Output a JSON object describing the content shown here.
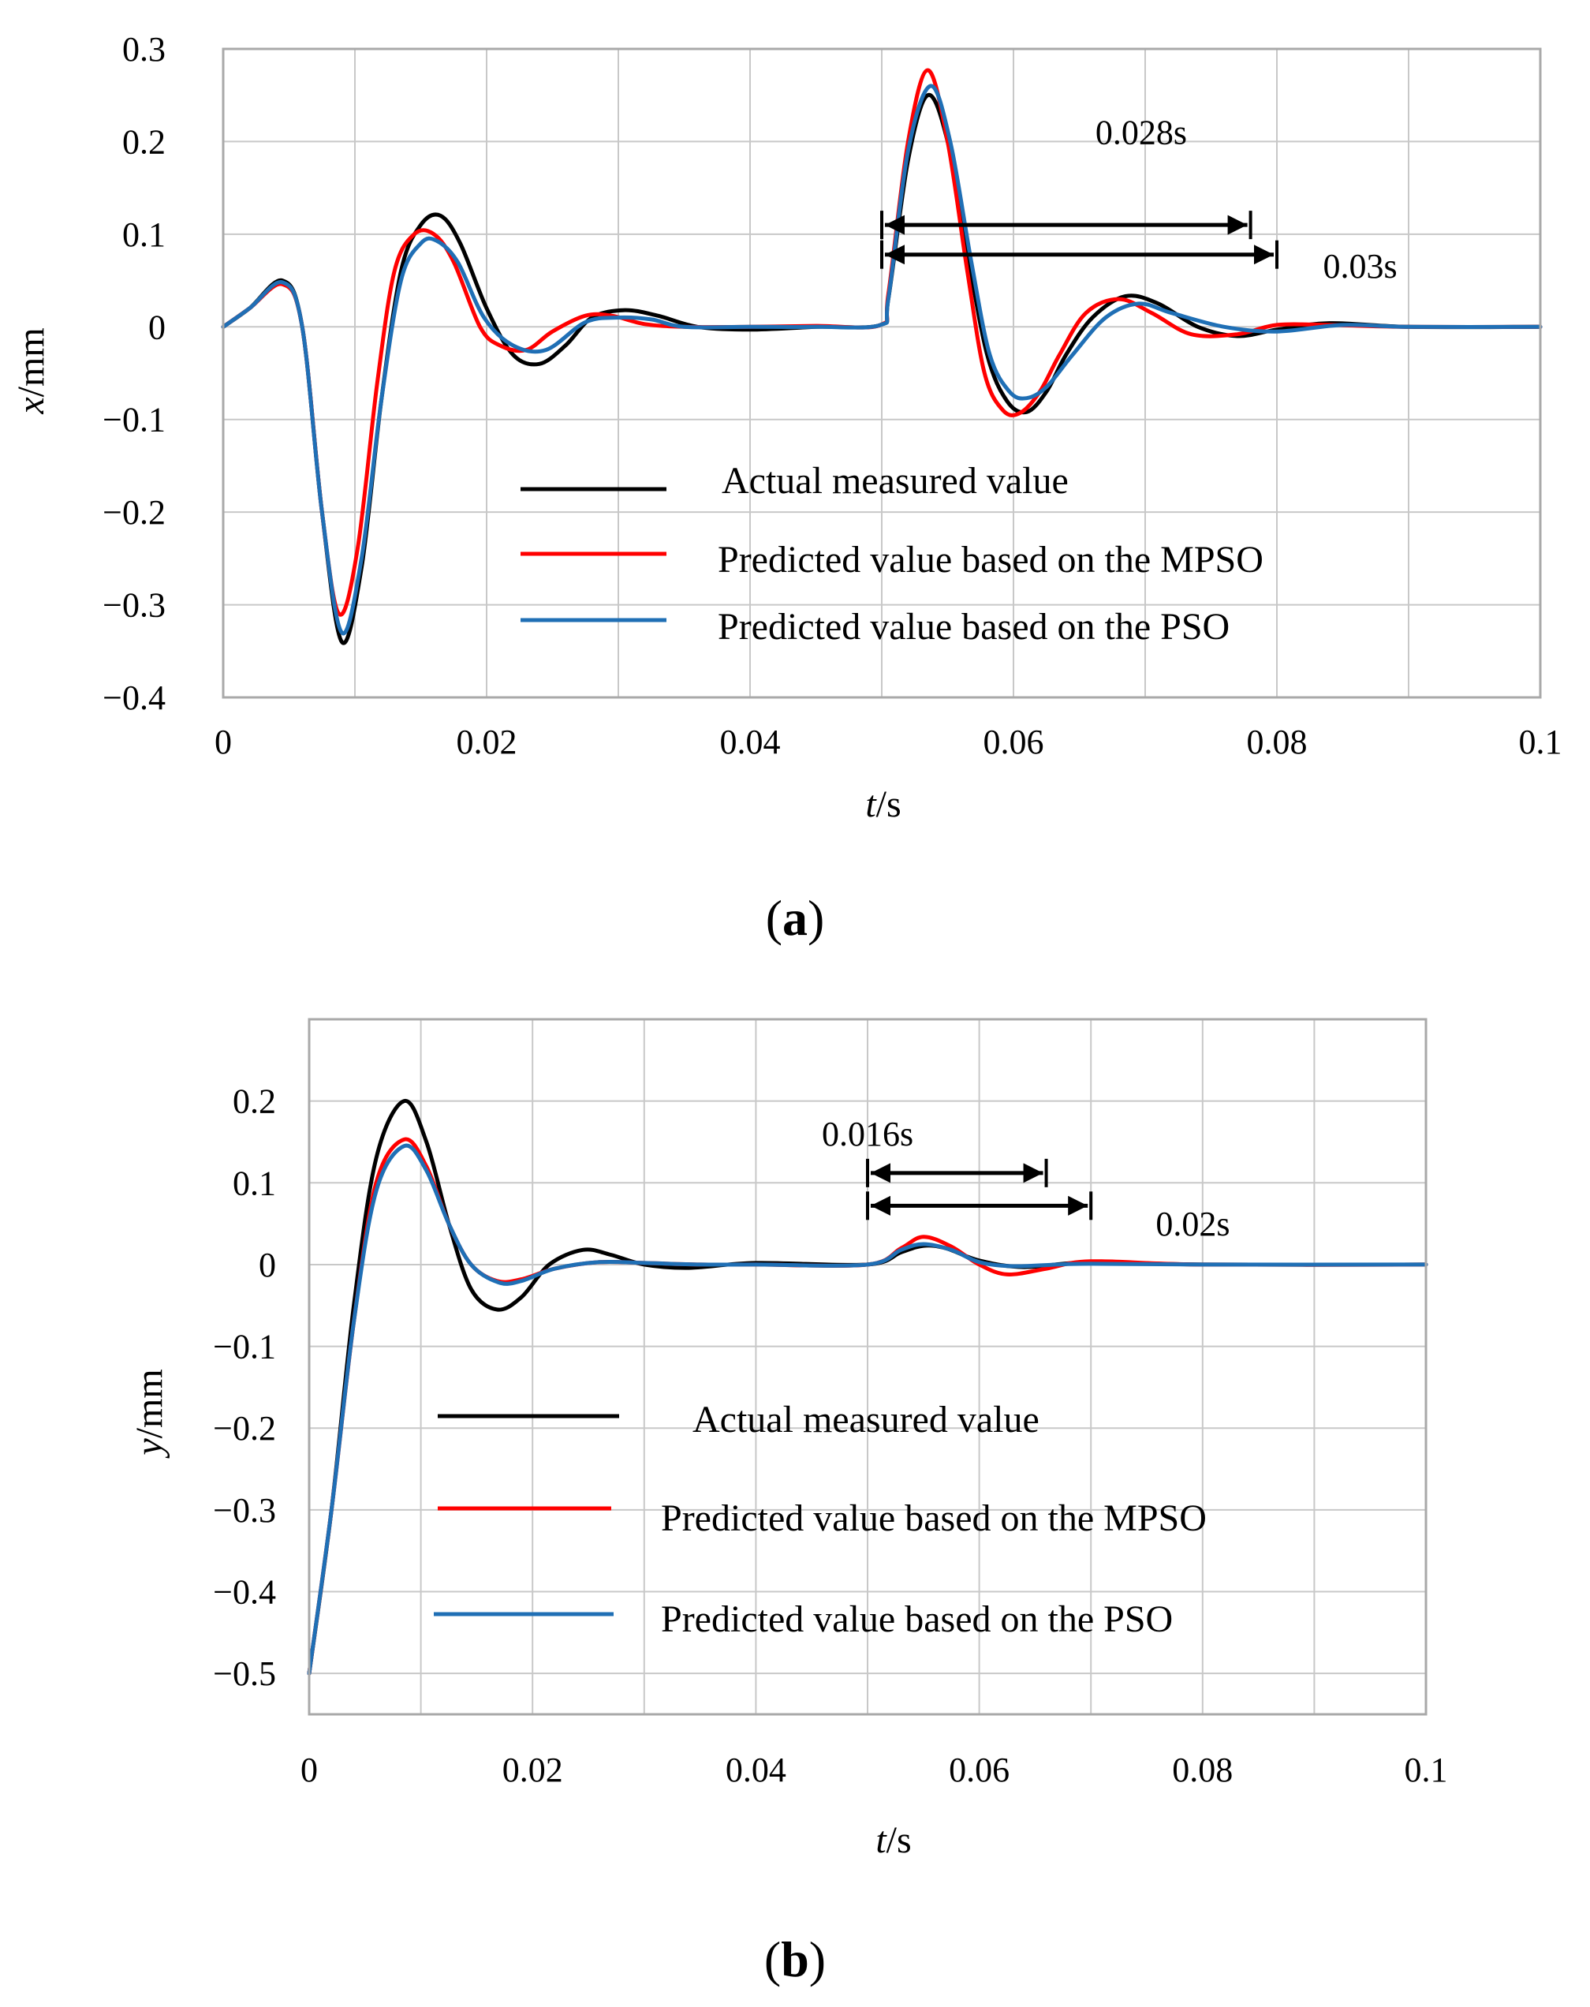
{
  "figure": {
    "panels": [
      {
        "label": "a",
        "xlabel_italic": "t",
        "xlabel_unit": "/s",
        "ylabel_italic": "x",
        "ylabel_unit": "/mm",
        "annotations": [
          {
            "text": "0.028s"
          },
          {
            "text": "0.03s"
          }
        ]
      },
      {
        "label": "b",
        "xlabel_italic": "t",
        "xlabel_unit": "/s",
        "ylabel_italic": "y",
        "ylabel_unit": "/mm",
        "annotations": [
          {
            "text": "0.016s"
          },
          {
            "text": "0.02s"
          }
        ]
      }
    ]
  },
  "chart_data": [
    {
      "type": "line",
      "panel": "a",
      "xlabel": "t/s",
      "ylabel": "x/mm",
      "xlim": [
        0,
        0.1
      ],
      "ylim": [
        -0.4,
        0.3
      ],
      "xticks": [
        0,
        0.02,
        0.04,
        0.06,
        0.08,
        0.1
      ],
      "xtick_labels": [
        "0",
        "0.02",
        "0.04",
        "0.06",
        "0.08",
        "0.1"
      ],
      "yticks": [
        0.3,
        0.2,
        0.1,
        0,
        -0.1,
        -0.2,
        -0.3,
        -0.4
      ],
      "ytick_labels": [
        "0.3",
        "0.2",
        "0.1",
        "0",
        "−0.1",
        "−0.2",
        "−0.3",
        "−0.4"
      ],
      "grid": true,
      "legend_position": "lower-center",
      "intervals": [
        {
          "label": "0.028s",
          "x_start": 0.05,
          "x_end": 0.078,
          "y": 0.11
        },
        {
          "label": "0.03s",
          "x_start": 0.05,
          "x_end": 0.08,
          "y": 0.078
        }
      ],
      "series": [
        {
          "name": "Actual measured value",
          "color": "#000000",
          "x": [
            0,
            0.002,
            0.0045,
            0.006,
            0.0075,
            0.009,
            0.0105,
            0.012,
            0.0135,
            0.015,
            0.0165,
            0.018,
            0.02,
            0.022,
            0.024,
            0.026,
            0.028,
            0.0305,
            0.033,
            0.036,
            0.04,
            0.045,
            0.0499,
            0.0505,
            0.052,
            0.0535,
            0.055,
            0.0565,
            0.058,
            0.0595,
            0.061,
            0.0625,
            0.064,
            0.066,
            0.0685,
            0.071,
            0.074,
            0.077,
            0.08,
            0.084,
            0.09,
            0.1
          ],
          "y": [
            0,
            0.02,
            0.05,
            0.0,
            -0.2,
            -0.34,
            -0.26,
            -0.08,
            0.06,
            0.11,
            0.12,
            0.09,
            0.02,
            -0.03,
            -0.04,
            -0.02,
            0.01,
            0.018,
            0.012,
            0.0,
            -0.003,
            0.0,
            0.002,
            0.03,
            0.18,
            0.25,
            0.2,
            0.08,
            -0.03,
            -0.08,
            -0.092,
            -0.07,
            -0.03,
            0.01,
            0.033,
            0.025,
            0.0,
            -0.01,
            -0.003,
            0.004,
            0.0,
            0.0
          ]
        },
        {
          "name": "Predicted value based on the MPSO",
          "color": "#ff0000",
          "x": [
            0,
            0.002,
            0.0045,
            0.006,
            0.0075,
            0.0088,
            0.0102,
            0.0117,
            0.013,
            0.0145,
            0.016,
            0.0175,
            0.0195,
            0.021,
            0.023,
            0.025,
            0.0275,
            0.0295,
            0.032,
            0.035,
            0.04,
            0.045,
            0.0499,
            0.0505,
            0.052,
            0.0535,
            0.055,
            0.0565,
            0.0578,
            0.0592,
            0.0605,
            0.062,
            0.0635,
            0.0655,
            0.068,
            0.0705,
            0.0735,
            0.077,
            0.08,
            0.084,
            0.09,
            0.1
          ],
          "y": [
            0,
            0.02,
            0.046,
            0.0,
            -0.2,
            -0.31,
            -0.24,
            -0.06,
            0.06,
            0.1,
            0.1,
            0.07,
            0.0,
            -0.02,
            -0.025,
            -0.005,
            0.012,
            0.012,
            0.003,
            0.0,
            0.0,
            0.001,
            0.002,
            0.035,
            0.2,
            0.277,
            0.2,
            0.06,
            -0.05,
            -0.09,
            -0.093,
            -0.07,
            -0.03,
            0.015,
            0.03,
            0.015,
            -0.008,
            -0.008,
            0.002,
            0.002,
            0.0,
            0.0
          ]
        },
        {
          "name": "Predicted value based on the PSO",
          "color": "#1f6fb5",
          "x": [
            0,
            0.002,
            0.0045,
            0.006,
            0.0075,
            0.009,
            0.0105,
            0.012,
            0.0135,
            0.015,
            0.0162,
            0.0178,
            0.0198,
            0.022,
            0.0245,
            0.0275,
            0.03,
            0.0325,
            0.035,
            0.04,
            0.045,
            0.0499,
            0.0505,
            0.052,
            0.0537,
            0.0552,
            0.0568,
            0.0582,
            0.0597,
            0.061,
            0.0625,
            0.0645,
            0.067,
            0.0695,
            0.072,
            0.076,
            0.08,
            0.085,
            0.09,
            0.1
          ],
          "y": [
            0,
            0.02,
            0.048,
            0.0,
            -0.2,
            -0.33,
            -0.25,
            -0.08,
            0.05,
            0.09,
            0.093,
            0.07,
            0.01,
            -0.02,
            -0.025,
            0.005,
            0.01,
            0.008,
            0.0,
            0.0,
            0.0,
            0.002,
            0.03,
            0.19,
            0.26,
            0.2,
            0.07,
            -0.03,
            -0.07,
            -0.077,
            -0.065,
            -0.03,
            0.01,
            0.025,
            0.015,
            0.0,
            -0.005,
            0.002,
            0.0,
            0.0
          ]
        }
      ]
    },
    {
      "type": "line",
      "panel": "b",
      "xlabel": "t/s",
      "ylabel": "y/mm",
      "xlim": [
        0,
        0.1
      ],
      "ylim": [
        -0.55,
        0.3
      ],
      "xticks": [
        0,
        0.02,
        0.04,
        0.06,
        0.08,
        0.1
      ],
      "xtick_labels": [
        "0",
        "0.02",
        "0.04",
        "0.06",
        "0.08",
        "0.1"
      ],
      "yticks": [
        0.2,
        0.1,
        0,
        -0.1,
        -0.2,
        -0.3,
        -0.4,
        -0.5
      ],
      "ytick_labels": [
        "0.2",
        "0.1",
        "0",
        "−0.1",
        "−0.2",
        "−0.3",
        "−0.4",
        "−0.5"
      ],
      "grid": true,
      "legend_position": "lower-center",
      "intervals": [
        {
          "label": "0.016s",
          "x_start": 0.05,
          "x_end": 0.066,
          "y": 0.112
        },
        {
          "label": "0.02s",
          "x_start": 0.05,
          "x_end": 0.07,
          "y": 0.072
        }
      ],
      "series": [
        {
          "name": "Actual measured value",
          "color": "#000000",
          "x": [
            0,
            0.002,
            0.004,
            0.006,
            0.0085,
            0.0105,
            0.0125,
            0.0145,
            0.0168,
            0.019,
            0.0215,
            0.0245,
            0.027,
            0.03,
            0.034,
            0.04,
            0.05,
            0.053,
            0.055,
            0.057,
            0.06,
            0.064,
            0.07,
            0.08,
            0.1
          ],
          "y": [
            -0.5,
            -0.3,
            -0.05,
            0.13,
            0.2,
            0.15,
            0.05,
            -0.03,
            -0.055,
            -0.04,
            0.0,
            0.018,
            0.012,
            0.0,
            -0.004,
            0.002,
            0.0,
            0.015,
            0.023,
            0.02,
            0.005,
            -0.003,
            0.003,
            0.0,
            0.0
          ]
        },
        {
          "name": "Predicted value based on the MPSO",
          "color": "#ff0000",
          "x": [
            0,
            0.002,
            0.004,
            0.006,
            0.0085,
            0.0105,
            0.0125,
            0.0145,
            0.0168,
            0.019,
            0.022,
            0.026,
            0.03,
            0.035,
            0.04,
            0.05,
            0.053,
            0.055,
            0.0575,
            0.06,
            0.0625,
            0.066,
            0.07,
            0.08,
            0.1
          ],
          "y": [
            -0.5,
            -0.3,
            -0.07,
            0.1,
            0.153,
            0.12,
            0.05,
            0.0,
            -0.02,
            -0.018,
            -0.005,
            0.003,
            0.002,
            0.0,
            0.0,
            0.0,
            0.02,
            0.034,
            0.022,
            0.0,
            -0.012,
            -0.005,
            0.004,
            0.0,
            0.0
          ]
        },
        {
          "name": "Predicted value based on the PSO",
          "color": "#1f6fb5",
          "x": [
            0,
            0.002,
            0.004,
            0.006,
            0.0085,
            0.0105,
            0.0125,
            0.0145,
            0.017,
            0.019,
            0.022,
            0.026,
            0.03,
            0.035,
            0.04,
            0.05,
            0.053,
            0.055,
            0.0575,
            0.06,
            0.063,
            0.067,
            0.07,
            0.08,
            0.1
          ],
          "y": [
            -0.5,
            -0.3,
            -0.07,
            0.09,
            0.145,
            0.115,
            0.05,
            0.0,
            -0.022,
            -0.02,
            -0.005,
            0.003,
            0.002,
            0.0,
            0.0,
            0.0,
            0.018,
            0.025,
            0.018,
            0.003,
            -0.002,
            0.0,
            0.001,
            0.0,
            0.0
          ]
        }
      ]
    }
  ]
}
